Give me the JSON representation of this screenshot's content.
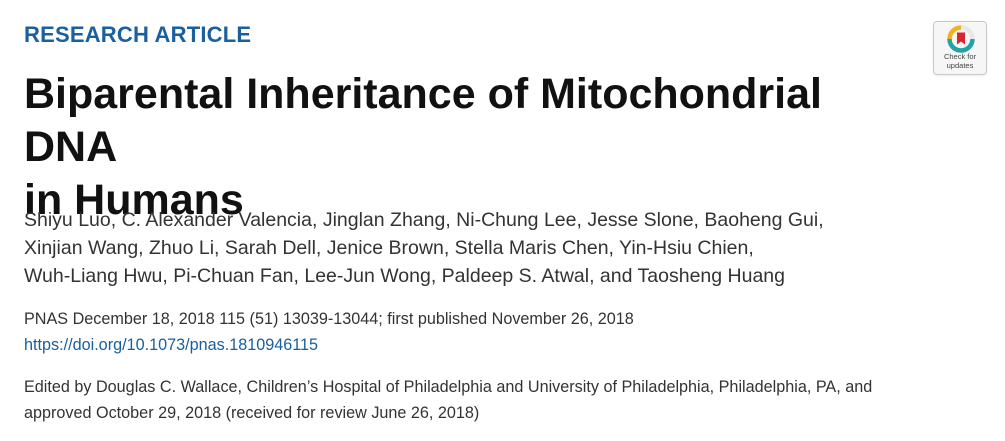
{
  "article_type": "RESEARCH ARTICLE",
  "title": {
    "line1": "Biparental Inheritance of Mitochondrial DNA",
    "line2": "in Humans"
  },
  "authors": {
    "line1": "Shiyu Luo, C. Alexander Valencia, Jinglan Zhang, Ni-Chung Lee, Jesse Slone, Baoheng Gui,",
    "line2": "Xinjian Wang, Zhuo Li, Sarah Dell, Jenice Brown, Stella Maris Chen, Yin-Hsiu Chien,",
    "line3": "Wuh-Liang Hwu, Pi-Chuan Fan, Lee-Jun Wong, Paldeep S. Atwal, and Taosheng Huang"
  },
  "citation": "PNAS December 18, 2018 115 (51) 13039-13044; first published November 26, 2018",
  "doi": "https://doi.org/10.1073/pnas.1810946115",
  "edited": {
    "line1": "Edited by Douglas C. Wallace, Children’s Hospital of Philadelphia and University of Philadelphia, Philadelphia, PA, and",
    "line2": "approved October 29, 2018 (received for review June 26, 2018)"
  },
  "badge": {
    "line1": "Check for",
    "line2": "updates",
    "icon": "check-for-updates-icon"
  },
  "colors": {
    "accent": "#1a5fa0",
    "badge_red": "#d9262e",
    "badge_yellow": "#f2b21b",
    "badge_teal": "#24a3a6"
  }
}
